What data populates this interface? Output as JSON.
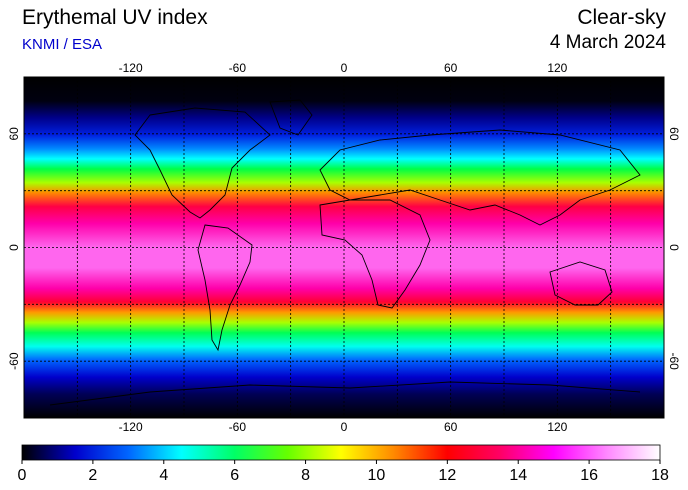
{
  "header": {
    "title": "Erythemal UV index",
    "credit": "KNMI / ESA",
    "product": "Clear-sky",
    "date": "4 March 2024"
  },
  "map": {
    "lon_ticks": [
      "-120",
      "-60",
      "0",
      "60",
      "120"
    ],
    "lat_ticks": [
      "60",
      "0",
      "-60"
    ],
    "lon_tick_values": [
      -120,
      -60,
      0,
      60,
      120
    ],
    "lat_tick_values": [
      60,
      0,
      -60
    ]
  },
  "colorbar": {
    "labels": [
      "0",
      "2",
      "4",
      "6",
      "8",
      "10",
      "12",
      "14",
      "16",
      "18"
    ],
    "min": 0,
    "max": 18,
    "colors": [
      "#000000",
      "#0000cc",
      "#0066ff",
      "#00ffff",
      "#00ff66",
      "#66ff00",
      "#ffff00",
      "#ff8800",
      "#ff0000",
      "#ff0066",
      "#ff00ff",
      "#ff88ff",
      "#ffffff"
    ]
  }
}
